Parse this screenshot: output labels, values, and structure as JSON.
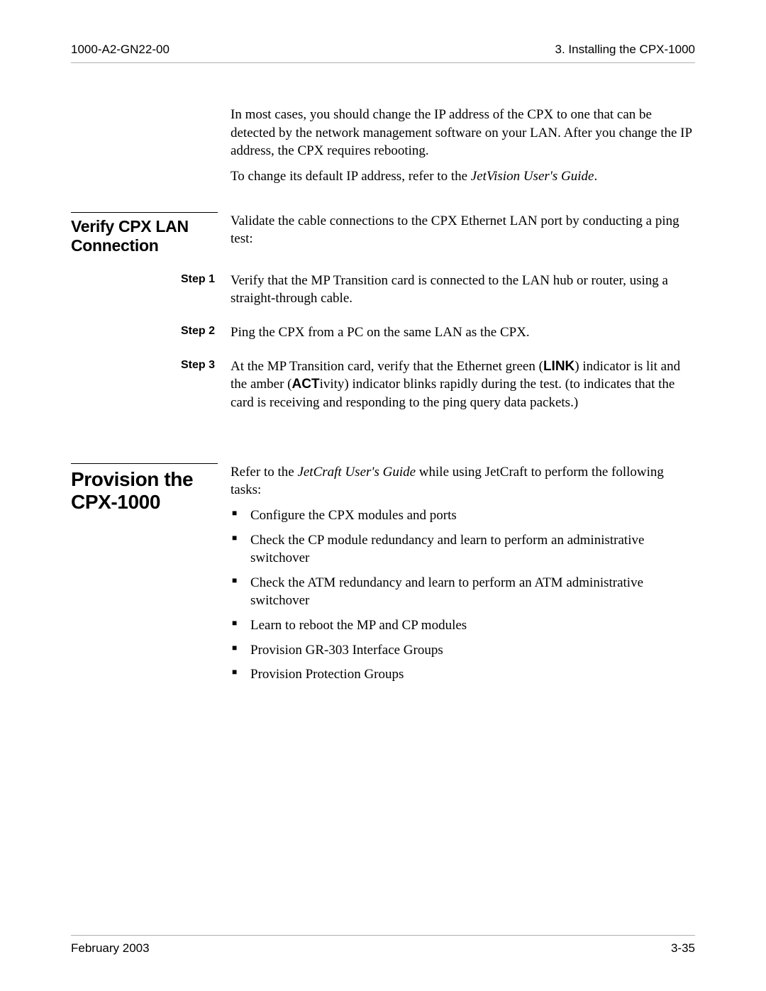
{
  "header": {
    "left": "1000-A2-GN22-00",
    "right": "3. Installing the CPX-1000"
  },
  "intro": {
    "p1": "In most cases, you should change the IP address of the CPX to one that can be detected by the network management software on your LAN. After you change the IP address, the CPX requires rebooting.",
    "p2_prefix": "To change its default IP address, refer to the ",
    "p2_ital": "JetVision User's Guide",
    "p2_suffix": "."
  },
  "section1": {
    "title": "Verify CPX LAN Connection",
    "lead": "Validate the cable connections to the CPX Ethernet LAN port by conducting a ping test:",
    "steps": {
      "s1_label": "Step 1",
      "s1_text": "Verify that the MP Transition card is connected to the LAN hub or router, using a straight-through cable.",
      "s2_label": "Step 2",
      "s2_text": "Ping the CPX from a PC on the same LAN as the CPX.",
      "s3_label": "Step 3",
      "s3_a": "At the MP Transition card, verify that the Ethernet green (",
      "s3_link": "LINK",
      "s3_b": ") indicator is lit and the amber (",
      "s3_act": "ACT",
      "s3_c": "ivity) indicator blinks rapidly during the test. (to indicates that the card is receiving and responding to the ping query data packets.)"
    }
  },
  "section2": {
    "title": "Provision the CPX-1000",
    "lead_a": "Refer to the ",
    "lead_ital": "JetCraft User's Guide",
    "lead_b": " while using JetCraft to perform the following tasks:",
    "bullets": {
      "b1": "Configure the CPX modules and ports",
      "b2": "Check the CP module redundancy and learn to perform an administrative switchover",
      "b3": "Check the ATM redundancy and learn to perform an ATM administrative switchover",
      "b4": "Learn to reboot the MP and CP modules",
      "b5": "Provision GR-303 Interface Groups",
      "b6": "Provision Protection Groups"
    }
  },
  "footer": {
    "left": "February 2003",
    "right": "3-35"
  }
}
